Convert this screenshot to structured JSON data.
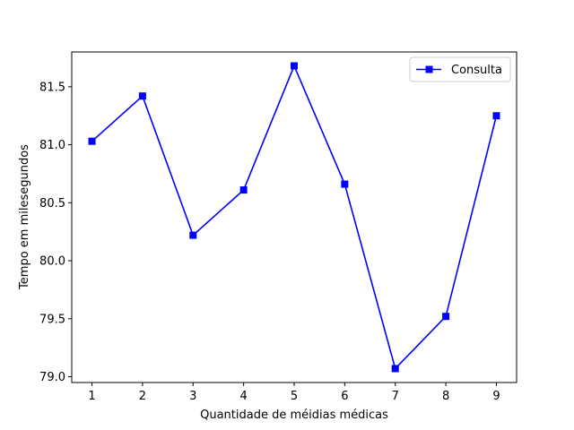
{
  "chart_data": {
    "type": "line",
    "title": "",
    "xlabel": "Quantidade de méidias médicas",
    "ylabel": "Tempo em milesegundos",
    "x": [
      1,
      2,
      3,
      4,
      5,
      6,
      7,
      8,
      9
    ],
    "x_tick_labels": [
      "1",
      "2",
      "3",
      "4",
      "5",
      "6",
      "7",
      "8",
      "9"
    ],
    "y_ticks": [
      79.0,
      79.5,
      80.0,
      80.5,
      81.0,
      81.5
    ],
    "y_tick_labels": [
      "79.0",
      "79.5",
      "80.0",
      "80.5",
      "81.0",
      "81.5"
    ],
    "xlim": [
      0.6,
      9.4
    ],
    "ylim": [
      78.95,
      81.8
    ],
    "grid": false,
    "legend_position": "top-right",
    "series": [
      {
        "name": "Consulta",
        "color": "#0000ff",
        "marker": "square",
        "values": [
          81.03,
          81.42,
          80.22,
          80.61,
          81.68,
          80.66,
          79.07,
          79.52,
          81.25
        ]
      }
    ]
  }
}
